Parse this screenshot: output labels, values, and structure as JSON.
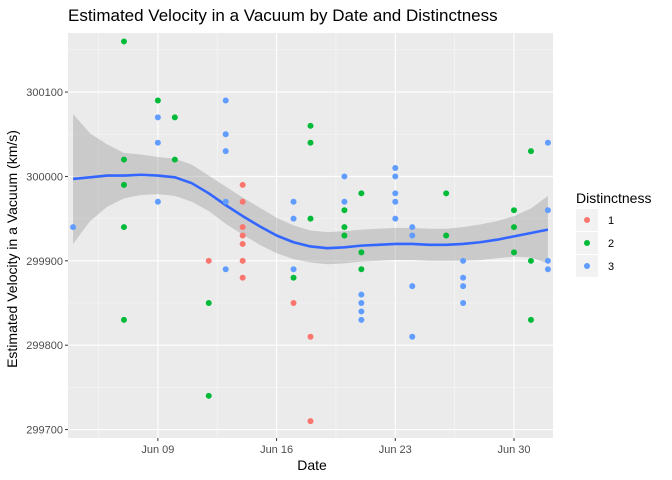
{
  "chart_data": {
    "type": "scatter",
    "title": "Estimated Velocity in a Vacuum by Date and Distinctness",
    "xlabel": "Date",
    "ylabel": "Estimated Velocity in a Vacuum (km/s)",
    "x_ticks": [
      {
        "label": "Jun 09",
        "day": 9
      },
      {
        "label": "Jun 16",
        "day": 16
      },
      {
        "label": "Jun 23",
        "day": 23
      },
      {
        "label": "Jun 30",
        "day": 30
      }
    ],
    "y_ticks": [
      299700,
      299800,
      299900,
      300000,
      300100
    ],
    "xlim": [
      "Jun 3.7",
      "Jul 2.3"
    ],
    "ylim": [
      299690,
      300170
    ],
    "x_unit": "day of June",
    "grid": true,
    "legend": {
      "title": "Distinctness",
      "placement": "right",
      "entries": [
        {
          "label": "1",
          "color": "#F8766D"
        },
        {
          "label": "2",
          "color": "#00BA38"
        },
        {
          "label": "3",
          "color": "#619CFF"
        }
      ]
    },
    "colors": {
      "panel": "#EBEBEB",
      "grid_major": "#FFFFFF",
      "smooth_line": "#3366FF",
      "ribbon": "#999999"
    },
    "series": [
      {
        "name": "1",
        "color": "#F8766D",
        "points": [
          {
            "x": 12,
            "y": 299900
          },
          {
            "x": 14,
            "y": 299990
          },
          {
            "x": 14,
            "y": 299970
          },
          {
            "x": 14,
            "y": 299940
          },
          {
            "x": 14,
            "y": 299930
          },
          {
            "x": 14,
            "y": 299920
          },
          {
            "x": 14,
            "y": 299900
          },
          {
            "x": 14,
            "y": 299880
          },
          {
            "x": 17,
            "y": 299850
          },
          {
            "x": 18,
            "y": 299810
          },
          {
            "x": 18,
            "y": 299710
          }
        ]
      },
      {
        "name": "2",
        "color": "#00BA38",
        "points": [
          {
            "x": 7,
            "y": 300160
          },
          {
            "x": 7,
            "y": 300020
          },
          {
            "x": 7,
            "y": 299990
          },
          {
            "x": 7,
            "y": 299940
          },
          {
            "x": 7,
            "y": 299830
          },
          {
            "x": 9,
            "y": 300090
          },
          {
            "x": 10,
            "y": 300070
          },
          {
            "x": 10,
            "y": 300020
          },
          {
            "x": 12,
            "y": 299850
          },
          {
            "x": 12,
            "y": 299740
          },
          {
            "x": 17,
            "y": 299880
          },
          {
            "x": 18,
            "y": 300060
          },
          {
            "x": 18,
            "y": 300040
          },
          {
            "x": 18,
            "y": 299950
          },
          {
            "x": 20,
            "y": 299960
          },
          {
            "x": 20,
            "y": 299940
          },
          {
            "x": 20,
            "y": 299930
          },
          {
            "x": 21,
            "y": 299980
          },
          {
            "x": 21,
            "y": 299910
          },
          {
            "x": 21,
            "y": 299890
          },
          {
            "x": 26,
            "y": 299980
          },
          {
            "x": 26,
            "y": 299930
          },
          {
            "x": 30,
            "y": 299960
          },
          {
            "x": 30,
            "y": 299940
          },
          {
            "x": 30,
            "y": 299910
          },
          {
            "x": 31,
            "y": 300030
          },
          {
            "x": 31,
            "y": 299900
          },
          {
            "x": 31,
            "y": 299830
          }
        ]
      },
      {
        "name": "3",
        "color": "#619CFF",
        "points": [
          {
            "x": 4,
            "y": 299940
          },
          {
            "x": 9,
            "y": 300070
          },
          {
            "x": 9,
            "y": 300040
          },
          {
            "x": 9,
            "y": 299970
          },
          {
            "x": 13,
            "y": 300090
          },
          {
            "x": 13,
            "y": 300050
          },
          {
            "x": 13,
            "y": 300030
          },
          {
            "x": 13,
            "y": 299970
          },
          {
            "x": 13,
            "y": 299890
          },
          {
            "x": 17,
            "y": 299970
          },
          {
            "x": 17,
            "y": 299950
          },
          {
            "x": 17,
            "y": 299890
          },
          {
            "x": 20,
            "y": 300000
          },
          {
            "x": 20,
            "y": 299970
          },
          {
            "x": 21,
            "y": 299860
          },
          {
            "x": 21,
            "y": 299850
          },
          {
            "x": 21,
            "y": 299840
          },
          {
            "x": 21,
            "y": 299830
          },
          {
            "x": 23,
            "y": 300010
          },
          {
            "x": 23,
            "y": 300000
          },
          {
            "x": 23,
            "y": 299980
          },
          {
            "x": 23,
            "y": 299970
          },
          {
            "x": 23,
            "y": 299950
          },
          {
            "x": 24,
            "y": 299940
          },
          {
            "x": 24,
            "y": 299930
          },
          {
            "x": 24,
            "y": 299870
          },
          {
            "x": 24,
            "y": 299810
          },
          {
            "x": 27,
            "y": 299900
          },
          {
            "x": 27,
            "y": 299880
          },
          {
            "x": 27,
            "y": 299870
          },
          {
            "x": 27,
            "y": 299850
          },
          {
            "x": 32,
            "y": 300040
          },
          {
            "x": 32,
            "y": 299960
          },
          {
            "x": 32,
            "y": 299900
          },
          {
            "x": 32,
            "y": 299890
          }
        ]
      }
    ],
    "smooth": {
      "method": "loess",
      "points": [
        {
          "x": 4,
          "y": 299997,
          "lo": 299920,
          "hi": 300074
        },
        {
          "x": 5,
          "y": 299999,
          "lo": 299947,
          "hi": 300051
        },
        {
          "x": 6,
          "y": 300001,
          "lo": 299964,
          "hi": 300038
        },
        {
          "x": 7,
          "y": 300001,
          "lo": 299974,
          "hi": 300028
        },
        {
          "x": 8,
          "y": 300002,
          "lo": 299978,
          "hi": 300026
        },
        {
          "x": 9,
          "y": 300001,
          "lo": 299979,
          "hi": 300023
        },
        {
          "x": 10,
          "y": 299999,
          "lo": 299977,
          "hi": 300021
        },
        {
          "x": 11,
          "y": 299992,
          "lo": 299970,
          "hi": 300014
        },
        {
          "x": 12,
          "y": 299980,
          "lo": 299959,
          "hi": 300001
        },
        {
          "x": 13,
          "y": 299966,
          "lo": 299944,
          "hi": 299988
        },
        {
          "x": 14,
          "y": 299953,
          "lo": 299931,
          "hi": 299975
        },
        {
          "x": 15,
          "y": 299941,
          "lo": 299919,
          "hi": 299963
        },
        {
          "x": 16,
          "y": 299930,
          "lo": 299909,
          "hi": 299951
        },
        {
          "x": 17,
          "y": 299922,
          "lo": 299902,
          "hi": 299942
        },
        {
          "x": 18,
          "y": 299917,
          "lo": 299898,
          "hi": 299936
        },
        {
          "x": 19,
          "y": 299915,
          "lo": 299896,
          "hi": 299934
        },
        {
          "x": 20,
          "y": 299916,
          "lo": 299897,
          "hi": 299935
        },
        {
          "x": 21,
          "y": 299918,
          "lo": 299899,
          "hi": 299937
        },
        {
          "x": 22,
          "y": 299919,
          "lo": 299900,
          "hi": 299938
        },
        {
          "x": 23,
          "y": 299920,
          "lo": 299901,
          "hi": 299939
        },
        {
          "x": 24,
          "y": 299920,
          "lo": 299901,
          "hi": 299939
        },
        {
          "x": 25,
          "y": 299919,
          "lo": 299900,
          "hi": 299938
        },
        {
          "x": 26,
          "y": 299919,
          "lo": 299900,
          "hi": 299938
        },
        {
          "x": 27,
          "y": 299920,
          "lo": 299900,
          "hi": 299940
        },
        {
          "x": 28,
          "y": 299922,
          "lo": 299901,
          "hi": 299943
        },
        {
          "x": 29,
          "y": 299925,
          "lo": 299903,
          "hi": 299947
        },
        {
          "x": 30,
          "y": 299929,
          "lo": 299905,
          "hi": 299953
        },
        {
          "x": 31,
          "y": 299933,
          "lo": 299904,
          "hi": 299962
        },
        {
          "x": 32,
          "y": 299937,
          "lo": 299897,
          "hi": 299977
        }
      ]
    }
  }
}
